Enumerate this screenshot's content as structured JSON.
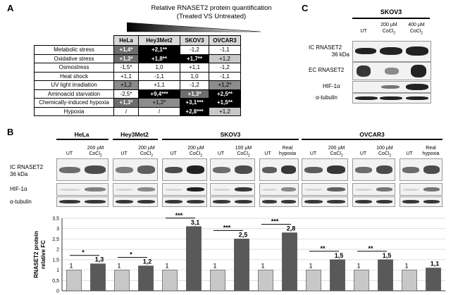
{
  "panelA": {
    "letter": "A",
    "title1": "Relative RNASET2 protein quantification",
    "title2": "(Treated VS Untreated)",
    "columns": [
      "HeLa",
      "Hey3Met2",
      "SKOV3",
      "OVCAR3"
    ],
    "rows": [
      {
        "label": "Metabolic stress",
        "cells": [
          {
            "v": "+1,4*",
            "bg": "#6d6d6d",
            "fg": "#ffffff"
          },
          {
            "v": "+2,1**",
            "bg": "#000000",
            "fg": "#ffffff"
          },
          {
            "v": "-1,2",
            "bg": "#ffffff",
            "fg": "#000000"
          },
          {
            "v": "-1,1",
            "bg": "#ffffff",
            "fg": "#000000"
          }
        ]
      },
      {
        "label": "Oxidative stress",
        "cells": [
          {
            "v": "+1,3*",
            "bg": "#6d6d6d",
            "fg": "#ffffff"
          },
          {
            "v": "+1,8**",
            "bg": "#000000",
            "fg": "#ffffff"
          },
          {
            "v": "+1,7**",
            "bg": "#000000",
            "fg": "#ffffff"
          },
          {
            "v": "+1,2",
            "bg": "#c8c8c8",
            "fg": "#000000"
          }
        ]
      },
      {
        "label": "Osmostress",
        "cells": [
          {
            "v": "-1,5*",
            "bg": "#ffffff",
            "fg": "#000000"
          },
          {
            "v": "1,0",
            "bg": "#ffffff",
            "fg": "#000000"
          },
          {
            "v": "+1,1",
            "bg": "#ffffff",
            "fg": "#000000"
          },
          {
            "v": "-1,2",
            "bg": "#ffffff",
            "fg": "#000000"
          }
        ]
      },
      {
        "label": "Heat shock",
        "cells": [
          {
            "v": "+1,1",
            "bg": "#ffffff",
            "fg": "#000000"
          },
          {
            "v": "-1,1",
            "bg": "#ffffff",
            "fg": "#000000"
          },
          {
            "v": "1,0",
            "bg": "#ffffff",
            "fg": "#000000"
          },
          {
            "v": "-1,1",
            "bg": "#ffffff",
            "fg": "#000000"
          }
        ]
      },
      {
        "label": "UV light irradiation",
        "cells": [
          {
            "v": "+1,2",
            "bg": "#8c8c8c",
            "fg": "#000000"
          },
          {
            "v": "+1,1",
            "bg": "#ffffff",
            "fg": "#000000"
          },
          {
            "v": "-1,2",
            "bg": "#ffffff",
            "fg": "#000000"
          },
          {
            "v": "+1,2*",
            "bg": "#8c8c8c",
            "fg": "#000000"
          }
        ]
      },
      {
        "label": "Aminoacid starvation",
        "cells": [
          {
            "v": "-2,5*",
            "bg": "#ffffff",
            "fg": "#000000"
          },
          {
            "v": "+9,4***",
            "bg": "#000000",
            "fg": "#ffffff"
          },
          {
            "v": "+1,3*",
            "bg": "#6d6d6d",
            "fg": "#ffffff"
          },
          {
            "v": "+2,5**",
            "bg": "#000000",
            "fg": "#ffffff"
          }
        ]
      },
      {
        "label": "Chemically-induced hypoxia",
        "cells": [
          {
            "v": "+1,3*",
            "bg": "#6d6d6d",
            "fg": "#ffffff"
          },
          {
            "v": "+1,2*",
            "bg": "#8c8c8c",
            "fg": "#000000"
          },
          {
            "v": "+3,1***",
            "bg": "#000000",
            "fg": "#ffffff"
          },
          {
            "v": "+1,5**",
            "bg": "#000000",
            "fg": "#ffffff"
          }
        ]
      },
      {
        "label": "Hypoxia",
        "cells": [
          {
            "v": "/",
            "bg": "#ffffff",
            "fg": "#000000"
          },
          {
            "v": "/",
            "bg": "#ffffff",
            "fg": "#000000"
          },
          {
            "v": "+2,8***",
            "bg": "#000000",
            "fg": "#ffffff"
          },
          {
            "v": "+1,2",
            "bg": "#c8c8c8",
            "fg": "#000000"
          }
        ]
      }
    ]
  },
  "panelB": {
    "letter": "B",
    "groups": [
      {
        "name": "HeLa",
        "lanes": [
          "UT",
          "200 µM",
          "CoCl"
        ]
      },
      {
        "name": "Hey3Met2",
        "lanes": [
          "UT",
          "200 µM",
          "CoCl"
        ]
      },
      {
        "name": "SKOV3"
      },
      {
        "name": "OVCAR3"
      }
    ],
    "lane_labels": {
      "ut": "UT",
      "cocl_conc_200": "200 µM",
      "cocl_conc_100": "100 µM",
      "cocl": "CoCl",
      "sub2": "2",
      "real": "Real",
      "hypoxia": "hypoxia"
    },
    "blot_labels": {
      "ic1": "IC RNASET2",
      "ic2": "36 kDa",
      "hif": "HIF-1α",
      "tub": "α-tubulin"
    }
  },
  "panelC": {
    "letter": "C",
    "cell_line": "SKOV3",
    "lanes": [
      "UT",
      "200 µM",
      "400 µM"
    ],
    "cocl": "CoCl",
    "sub2": "2",
    "blot_labels": {
      "ic1": "IC RNASET2",
      "ic2": "36 kDa",
      "ec": "EC RNASET2",
      "hif": "HIF-1α",
      "tub": "α-tubulin"
    }
  },
  "chart_data": {
    "type": "bar",
    "ylabel": "RNASET2 protein relative FC",
    "ylim": [
      0,
      3.5
    ],
    "yticks": [
      "0",
      "0,5",
      "1",
      "1,5",
      "2",
      "2,5",
      "3",
      "3,5"
    ],
    "colors": {
      "control": "#c8c8c8",
      "treated": "#595959"
    },
    "bars": [
      {
        "value": 1,
        "label": "1",
        "kind": "control"
      },
      {
        "value": 1.3,
        "label": "1,3",
        "kind": "treated"
      },
      {
        "value": 1,
        "label": "1",
        "kind": "control"
      },
      {
        "value": 1.2,
        "label": "1,2",
        "kind": "treated"
      },
      {
        "value": 1,
        "label": "1",
        "kind": "control"
      },
      {
        "value": 3.1,
        "label": "3,1",
        "kind": "treated"
      },
      {
        "value": 1,
        "label": "1",
        "kind": "control"
      },
      {
        "value": 2.5,
        "label": "2,5",
        "kind": "treated"
      },
      {
        "value": 1,
        "label": "1",
        "kind": "control"
      },
      {
        "value": 2.8,
        "label": "2,8",
        "kind": "treated"
      },
      {
        "value": 1,
        "label": "1",
        "kind": "control"
      },
      {
        "value": 1.5,
        "label": "1,5",
        "kind": "treated"
      },
      {
        "value": 1,
        "label": "1",
        "kind": "control"
      },
      {
        "value": 1.5,
        "label": "1,5",
        "kind": "treated"
      },
      {
        "value": 1,
        "label": "1",
        "kind": "control"
      },
      {
        "value": 1.1,
        "label": "1,1",
        "kind": "treated"
      }
    ],
    "significance": [
      {
        "pair": 0,
        "stars": "*"
      },
      {
        "pair": 1,
        "stars": "*"
      },
      {
        "pair": 2,
        "stars": "***"
      },
      {
        "pair": 3,
        "stars": "***"
      },
      {
        "pair": 4,
        "stars": "***"
      },
      {
        "pair": 5,
        "stars": "**"
      },
      {
        "pair": 6,
        "stars": "**"
      }
    ]
  }
}
